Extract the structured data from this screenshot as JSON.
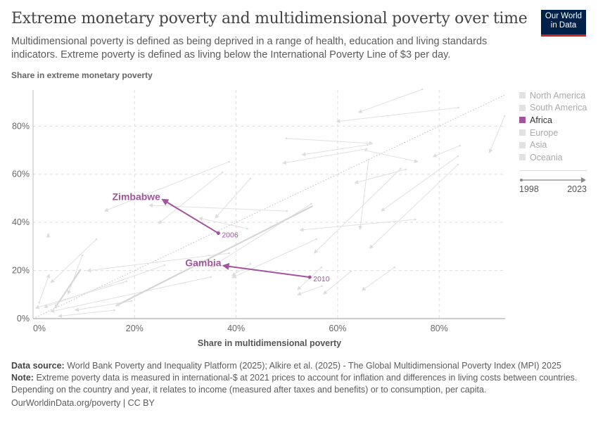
{
  "header": {
    "title": "Extreme monetary poverty and multidimensional poverty over time",
    "subtitle": "Multidimensional poverty is defined as being deprived in a range of health, education and living standards indicators. Extreme poverty is defined as living below the International Poverty Line of $3 per day.",
    "logo_line1": "Our World",
    "logo_line2": "in Data"
  },
  "chart_data": {
    "type": "scatter",
    "xlabel": "Share in multidimensional poverty",
    "ylabel": "Share in extreme monetary poverty",
    "xlim": [
      0,
      93
    ],
    "ylim": [
      0,
      95
    ],
    "x_ticks": [
      "0%",
      "20%",
      "40%",
      "60%",
      "80%"
    ],
    "y_ticks": [
      "0%",
      "20%",
      "40%",
      "60%",
      "80%"
    ],
    "tick_values": [
      0,
      20,
      40,
      60,
      80
    ],
    "grid": true,
    "reference_line": "y = x (dotted)",
    "legend_position": "right",
    "legend": [
      {
        "label": "North America",
        "color": "#e2e2e2",
        "active": false
      },
      {
        "label": "South America",
        "color": "#e2e2e2",
        "active": false
      },
      {
        "label": "Africa",
        "color": "#a2559c",
        "active": true
      },
      {
        "label": "Europe",
        "color": "#e2e2e2",
        "active": false
      },
      {
        "label": "Asia",
        "color": "#e2e2e2",
        "active": false
      },
      {
        "label": "Oceania",
        "color": "#e2e2e2",
        "active": false
      }
    ],
    "timeline": {
      "start": "1998",
      "end": "2023"
    },
    "highlight_color": "#a2559c",
    "highlighted": [
      {
        "name": "Zimbabwe",
        "start_label": "2006",
        "start": [
          36.5,
          35.5
        ],
        "end": [
          25.5,
          49.5
        ]
      },
      {
        "name": "Gambia",
        "start_label": "2010",
        "start": [
          54.5,
          17.2
        ],
        "end": [
          37.5,
          22.0
        ]
      }
    ],
    "background_paths": [
      [
        76.7,
        95.3,
        64.1,
        85.7
      ],
      [
        83.8,
        87.7,
        59.8,
        81.9
      ],
      [
        92.9,
        84.2,
        89.9,
        69.0
      ],
      [
        49.9,
        74.9,
        66.9,
        72.8
      ],
      [
        65.9,
        72.2,
        53.0,
        68.1
      ],
      [
        65.7,
        70.5,
        49.2,
        64.6
      ],
      [
        65.5,
        69.9,
        75.8,
        65.2
      ],
      [
        84.1,
        71.9,
        78.8,
        67.3
      ],
      [
        83.7,
        67.5,
        68.6,
        44.7
      ],
      [
        83.7,
        64.0,
        66.3,
        29.2
      ],
      [
        73.4,
        62.0,
        63.4,
        56.4
      ],
      [
        75.3,
        41.2,
        52.6,
        36.8
      ],
      [
        72.4,
        62.3,
        55.4,
        27.2
      ],
      [
        66.1,
        66.1,
        64.4,
        37.1
      ],
      [
        71.2,
        21.3,
        64.8,
        11.7
      ],
      [
        62.6,
        19.6,
        57.2,
        10.2
      ],
      [
        56.8,
        21.3,
        52.1,
        12.0
      ],
      [
        56.9,
        13.5,
        52.1,
        9.9
      ],
      [
        38.6,
        65.2,
        14.1,
        44.7
      ],
      [
        37.3,
        60.8,
        24.7,
        39.5
      ],
      [
        42.8,
        58.2,
        35.9,
        41.8
      ],
      [
        50.0,
        44.7,
        22.9,
        47.1
      ],
      [
        42.2,
        37.4,
        32.7,
        41.8
      ],
      [
        12.5,
        33.0,
        3.5,
        14.9
      ],
      [
        9.7,
        26.3,
        6.9,
        10.2
      ],
      [
        42.8,
        22.8,
        39.2,
        17.8
      ],
      [
        38.6,
        27.2,
        10.7,
        19.9
      ],
      [
        18.4,
        15.5,
        0.5,
        4.4
      ],
      [
        25.9,
        22.2,
        2.2,
        4.7
      ],
      [
        35.0,
        17.3,
        3.5,
        2.9
      ],
      [
        19.4,
        7.3,
        8.3,
        3.5
      ],
      [
        54.8,
        47.7,
        35.0,
        21.3
      ],
      [
        55.8,
        33.0,
        39.2,
        17.0
      ],
      [
        1.2,
        6.7,
        3.2,
        18.4
      ],
      [
        16.0,
        3.5,
        5.0,
        1.0
      ],
      [
        3.0,
        35.0,
        3.0,
        35.2
      ]
    ],
    "background_thick_paths": [
      [
        55.1,
        46.8,
        16.3,
        5.3
      ],
      [
        9.4,
        20.5,
        4.3,
        4.4
      ]
    ]
  },
  "footer": {
    "source_label": "Data source:",
    "source": "World Bank Poverty and Inequality Platform (2025); Alkire et al. (2025) - The Global Multidimensional Poverty Index (MPI) 2025",
    "note_label": "Note:",
    "note": "Extreme poverty data is measured in international-$ at 2021 prices to account for inflation and differences in living costs between countries. Depending on the country and year, it relates to income (measured after taxes and benefits) or to consumption, per capita.",
    "credit": "OurWorldinData.org/poverty | CC BY"
  }
}
